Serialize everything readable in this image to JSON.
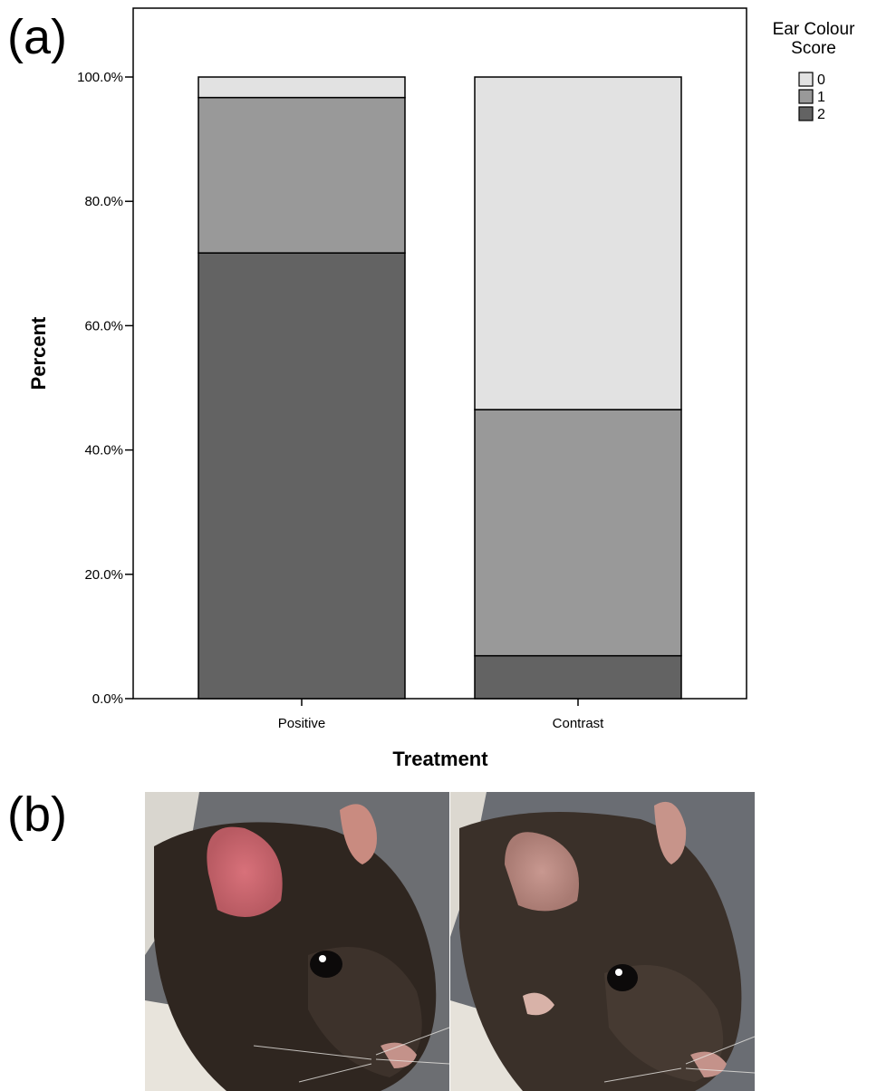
{
  "panels": {
    "a": "(a)",
    "b": "(b)"
  },
  "chart_data": {
    "type": "bar",
    "stacked": true,
    "categories": [
      "Positive",
      "Contrast"
    ],
    "series": [
      {
        "name": "2",
        "values": [
          71.7,
          6.9
        ],
        "color": "#636363"
      },
      {
        "name": "1",
        "values": [
          25.0,
          39.6
        ],
        "color": "#999999"
      },
      {
        "name": "0",
        "values": [
          3.3,
          53.5
        ],
        "color": "#e2e2e2"
      }
    ],
    "xlabel": "Treatment",
    "ylabel": "Percent",
    "ylim": [
      0,
      100
    ],
    "yticks": [
      "0.0%",
      "20.0%",
      "40.0%",
      "60.0%",
      "80.0%",
      "100.0%"
    ],
    "tick_values": [
      0,
      20,
      40,
      60,
      80,
      100
    ],
    "legend": {
      "title_lines": [
        "Ear Colour",
        "Score"
      ],
      "entries": [
        "0",
        "1",
        "2"
      ],
      "placement": "top-right"
    },
    "grid": false
  },
  "photos": [
    {
      "description": "rat-left",
      "fur": "#2e2520"
    },
    {
      "description": "rat-right",
      "fur": "#3a3029"
    }
  ]
}
